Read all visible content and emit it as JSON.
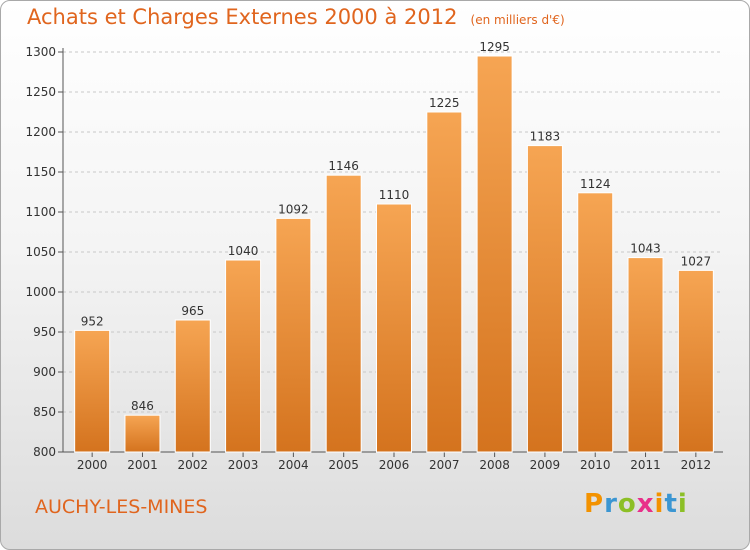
{
  "title": "Achats et Charges Externes 2000 à 2012",
  "unit_note": "(en milliers d'€)",
  "commune": "AUCHY-LES-MINES",
  "logo": {
    "letters": [
      "P",
      "r",
      "o",
      "x",
      "i",
      "t",
      "i"
    ],
    "colors": [
      "#f39200",
      "#3b96d2",
      "#8cbf26",
      "#e8308a",
      "#f39200",
      "#3b96d2",
      "#8cbf26"
    ]
  },
  "colors": {
    "accent": "#e0651e",
    "bar_top": "#f6a553",
    "bar_bottom": "#d4731e",
    "axis": "#555555",
    "grid": "#c8c8c8"
  },
  "chart_data": {
    "type": "bar",
    "categories": [
      "2000",
      "2001",
      "2002",
      "2003",
      "2004",
      "2005",
      "2006",
      "2007",
      "2008",
      "2009",
      "2010",
      "2011",
      "2012"
    ],
    "values": [
      952,
      846,
      965,
      1040,
      1092,
      1146,
      1110,
      1225,
      1295,
      1183,
      1124,
      1043,
      1027
    ],
    "data_labels": [
      "952",
      "846",
      "965",
      "1040",
      "1092",
      "1146",
      "1110",
      "1225",
      "1295",
      "1183",
      "1124",
      "1043",
      "1027"
    ],
    "ylim": [
      800,
      1300
    ],
    "yticks": [
      800,
      850,
      900,
      950,
      1000,
      1050,
      1100,
      1150,
      1200,
      1250,
      1300
    ],
    "grid": true,
    "legend": "none"
  }
}
